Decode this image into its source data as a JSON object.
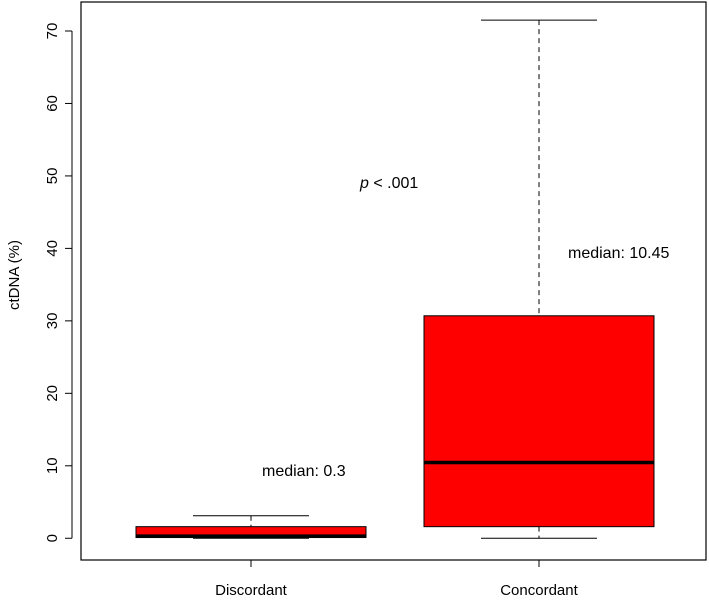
{
  "chart_data": {
    "type": "box",
    "ylabel": "ctDNA (%)",
    "xlabel": "",
    "title": "",
    "ylim": [
      -3,
      74
    ],
    "y_ticks": [
      0,
      10,
      20,
      30,
      40,
      50,
      60,
      70
    ],
    "grid": false,
    "legend": "none",
    "box_color": "#ff0000",
    "categories": [
      "Discordant",
      "Concordant"
    ],
    "boxes": [
      {
        "category": "Discordant",
        "min": 0.0,
        "q1": 0.1,
        "median": 0.3,
        "q3": 1.6,
        "max": 3.1
      },
      {
        "category": "Concordant",
        "min": 0.0,
        "q1": 1.6,
        "median": 10.45,
        "q3": 30.7,
        "max": 71.5
      }
    ],
    "annotations": {
      "p_symbol": "p",
      "p_rest": " < .001",
      "median_discordant": "median: 0.3",
      "median_concordant": "median: 10.45"
    }
  }
}
